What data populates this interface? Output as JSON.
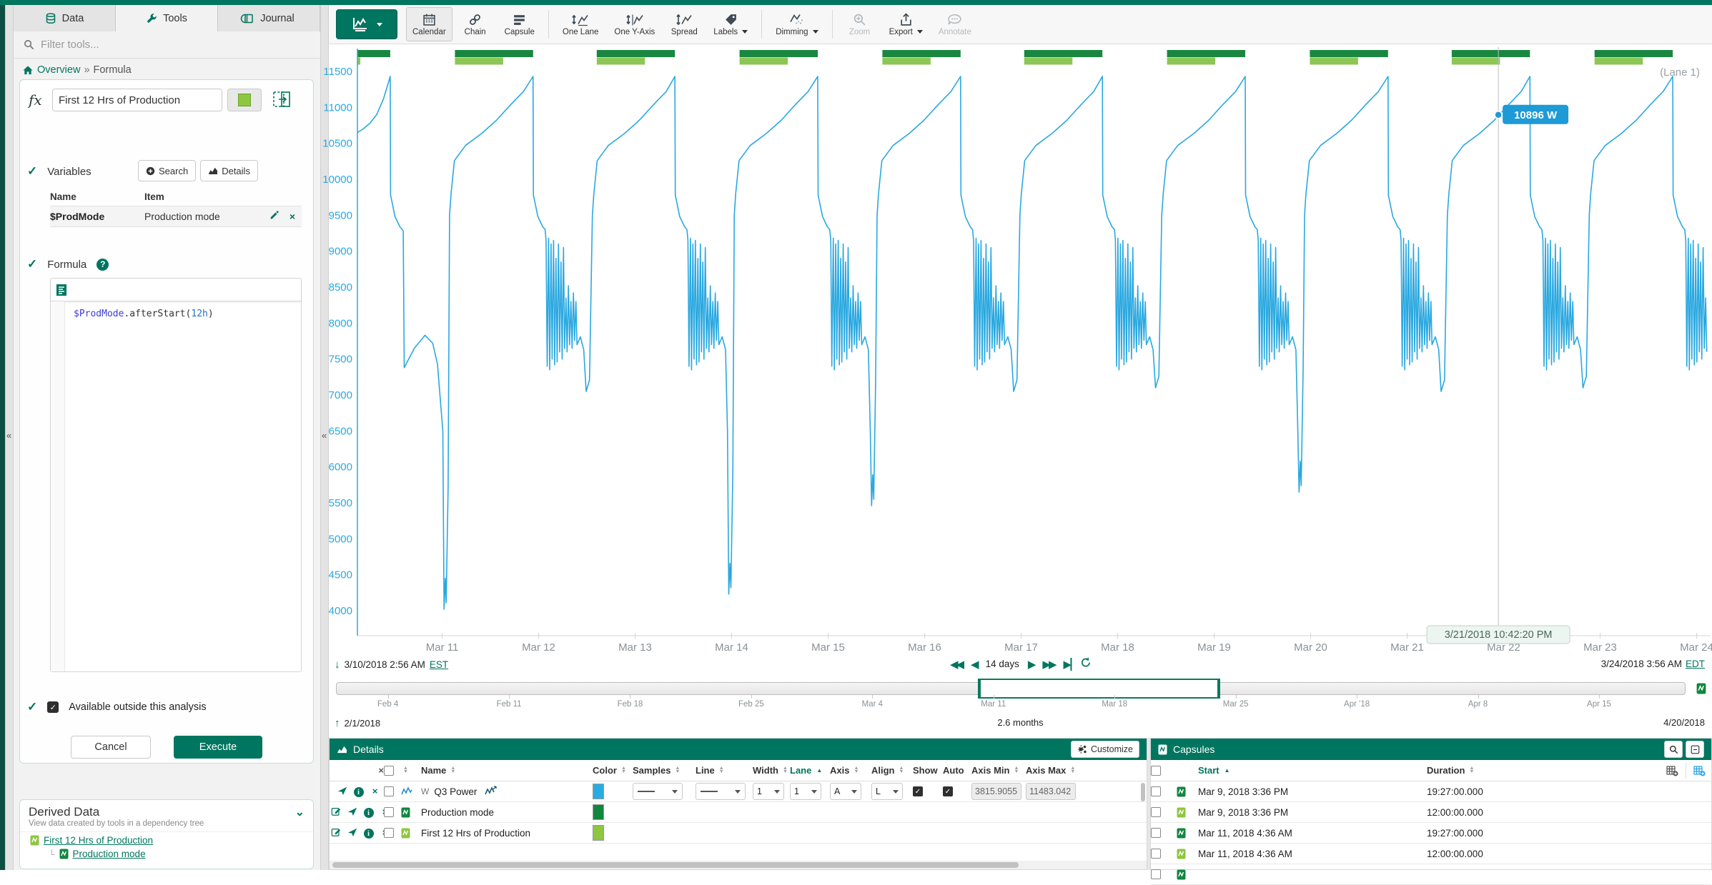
{
  "sidebar": {
    "tabs": [
      {
        "label": "Data"
      },
      {
        "label": "Tools"
      },
      {
        "label": "Journal"
      }
    ],
    "filter_placeholder": "Filter tools...",
    "breadcrumb": {
      "home": "Overview",
      "sep": "»",
      "current": "Formula"
    },
    "formula_tool": {
      "fx_icon": "fx",
      "name_value": "First 12 Hrs of Production",
      "swatch_color": "#8dc63f",
      "variables_label": "Variables",
      "search_button": "Search",
      "details_button": "Details",
      "col_name": "Name",
      "col_item": "Item",
      "var_name": "$ProdMode",
      "var_item": "Production mode",
      "formula_label": "Formula",
      "code_var": "$ProdMode",
      "code_method": ".afterStart(",
      "code_arg": "12h",
      "code_close": ")",
      "available_label": "Available outside this analysis",
      "cancel_label": "Cancel",
      "execute_label": "Execute"
    },
    "derived_data": {
      "title": "Derived Data",
      "subtitle": "View data created by tools in a dependency tree",
      "items": [
        {
          "label": "First 12 Hrs of Production"
        },
        {
          "label": "Production mode"
        }
      ]
    }
  },
  "toolbar": {
    "buttons": [
      {
        "label": "Calendar"
      },
      {
        "label": "Chain"
      },
      {
        "label": "Capsule"
      },
      {
        "label": "One Lane"
      },
      {
        "label": "One Y-Axis"
      },
      {
        "label": "Spread"
      },
      {
        "label": "Labels"
      },
      {
        "label": "Dimming"
      },
      {
        "label": "Zoom"
      },
      {
        "label": "Export"
      },
      {
        "label": "Annotate"
      }
    ]
  },
  "chart": {
    "lane_label": "(Lane 1)"
  },
  "nav": {
    "start_date": "3/10/2018 2:56 AM",
    "start_tz": "EST",
    "range_label": "14 days",
    "end_date": "3/24/2018 3:56 AM",
    "end_tz": "EDT"
  },
  "timebar": {
    "total_days": 78,
    "sel_start_day": 37.12,
    "sel_days": 14,
    "ticks": [
      {
        "label": "Feb 4",
        "day": 3
      },
      {
        "label": "Feb 11",
        "day": 10
      },
      {
        "label": "Feb 18",
        "day": 17
      },
      {
        "label": "Feb 25",
        "day": 24
      },
      {
        "label": "Mar 4",
        "day": 31
      },
      {
        "label": "Mar 11",
        "day": 38
      },
      {
        "label": "Mar 18",
        "day": 45
      },
      {
        "label": "Mar 25",
        "day": 52
      },
      {
        "label": "Apr '18",
        "day": 59
      },
      {
        "label": "Apr 8",
        "day": 66
      },
      {
        "label": "Apr 15",
        "day": 73
      }
    ],
    "start": "2/1/2018",
    "duration": "2.6 months",
    "end": "4/20/2018"
  },
  "details": {
    "title": "Details",
    "customize_label": "Customize",
    "columns": [
      {
        "label": "Name",
        "sort": "both",
        "presort": true
      },
      {
        "label": "Color",
        "sort": "both"
      },
      {
        "label": "Samples",
        "sort": "both"
      },
      {
        "label": "Line",
        "sort": "both"
      },
      {
        "label": "Width",
        "sort": "both"
      },
      {
        "label": "Lane",
        "sort": "asc"
      },
      {
        "label": "Axis",
        "sort": "both"
      },
      {
        "label": "Align",
        "sort": "both"
      },
      {
        "label": "Show",
        "sort": "none"
      },
      {
        "label": "Auto",
        "sort": "none"
      },
      {
        "label": "Axis Min",
        "sort": "both"
      },
      {
        "label": "Axis Max",
        "sort": "both"
      }
    ],
    "rows": [
      {
        "type": "signal",
        "editable": false,
        "unit": "W",
        "name": "Q3 Power",
        "color": "#29abe2",
        "width": "1",
        "lane": "1",
        "axis": "A",
        "align": "L",
        "show": true,
        "auto": true,
        "axis_min": "3815.9055",
        "axis_max": "11483.042"
      },
      {
        "type": "condition",
        "editable": true,
        "shade": "dark",
        "name": "Production mode",
        "color": "#11863f"
      },
      {
        "type": "condition",
        "editable": true,
        "shade": "light",
        "name": "First 12 Hrs of Production",
        "color": "#8dc63f"
      }
    ]
  },
  "capsules": {
    "title": "Capsules",
    "start_label": "Start",
    "duration_label": "Duration",
    "rows": [
      {
        "start": "Mar 9, 2018 3:36 PM",
        "duration": "19:27:00.000",
        "shade": "dark",
        "partial": false
      },
      {
        "start": "Mar 9, 2018 3:36 PM",
        "duration": "12:00:00.000",
        "shade": "light",
        "partial": false
      },
      {
        "start": "Mar 11, 2018 4:36 AM",
        "duration": "19:27:00.000",
        "shade": "dark",
        "partial": false
      },
      {
        "start": "Mar 11, 2018 4:36 AM",
        "duration": "12:00:00.000",
        "shade": "light",
        "partial": false
      },
      {
        "start": "",
        "duration": "",
        "shade": "dark",
        "partial": true
      }
    ]
  },
  "chart_data": {
    "type": "line",
    "series": [
      {
        "name": "Q3 Power",
        "unit": "W",
        "color": "#2aa8e0"
      }
    ],
    "x_days": 14,
    "x_start_label": "3/10/2018 2:56 AM EST",
    "x_end_label": "3/24/2018 3:56 AM EDT",
    "x_ticks": [
      "Mar 11",
      "Mar 12",
      "Mar 13",
      "Mar 14",
      "Mar 15",
      "Mar 16",
      "Mar 17",
      "Mar 18",
      "Mar 19",
      "Mar 20",
      "Mar 21",
      "Mar 22",
      "Mar 23",
      "Mar 24"
    ],
    "x_tick_first_day_offset": 0.878,
    "y_min": 3815.9055,
    "y_max": 11483.042,
    "y_ticks": [
      11500,
      11000,
      10500,
      10000,
      9500,
      9000,
      8500,
      8000,
      7500,
      7000,
      6500,
      6000,
      5500,
      5000,
      4500,
      4000
    ],
    "grid": false,
    "legend": "none",
    "cursor": {
      "day": 11.823,
      "value": 10896,
      "value_label": "10896 W",
      "time_label": "3/21/2018 10:42:20 PM"
    },
    "waveform": {
      "intro": [
        [
          0,
          10650
        ],
        [
          0.06,
          10700
        ],
        [
          0.13,
          10780
        ],
        [
          0.2,
          10900
        ],
        [
          0.27,
          11120
        ],
        [
          0.32,
          11340
        ]
      ],
      "drops": [
        0.34,
        1.82,
        3.29,
        4.77,
        6.25,
        7.72,
        9.2,
        10.68,
        12.15,
        13.63
      ],
      "peak": 11430,
      "after_drop": 9780,
      "plateau": 9300,
      "dips": [
        4020,
        7050,
        4230,
        5460,
        7050,
        7100,
        5650,
        7050,
        7100,
        7300
      ],
      "smooth_cycles": [
        0
      ],
      "spike_tops": [
        9150,
        9180,
        9100,
        9150,
        8900,
        9100,
        8850,
        9050,
        8350,
        8520,
        8300,
        8420,
        8300
      ],
      "spike_bottoms": [
        7400,
        7350,
        7500,
        7420,
        7460,
        7600,
        7500,
        7650,
        7600,
        7700,
        7650,
        7760,
        7700
      ],
      "climb": [
        [
          0.63,
          9800
        ],
        [
          0.665,
          10260
        ],
        [
          0.78,
          10470
        ],
        [
          0.95,
          10640
        ],
        [
          1.1,
          10820
        ],
        [
          1.25,
          11040
        ],
        [
          1.38,
          11220
        ]
      ]
    },
    "capsule_lanes": {
      "prod_duration_days": 0.81,
      "first12_duration_days": 0.5,
      "prod_color": "#1a8741",
      "first12_color": "#8cc755"
    }
  }
}
